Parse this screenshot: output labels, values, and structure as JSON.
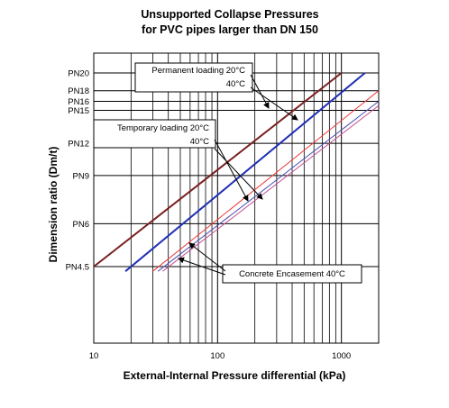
{
  "chart_data": {
    "type": "line",
    "title": "Unsupported Collapse Pressures",
    "subtitle": "for PVC pipes larger than DN 150",
    "xlabel": "External-Internal Pressure differential (kPa)",
    "ylabel": "Dimension ratio (Dm/t)",
    "x_scale": "log",
    "y_scale": "log",
    "xlim": [
      10,
      2000
    ],
    "x_ticks": [
      {
        "value": 10,
        "label": "10"
      },
      {
        "value": 100,
        "label": "100"
      },
      {
        "value": 1000,
        "label": "1000"
      }
    ],
    "y_ticks": [
      {
        "value": 80,
        "label": "PN20"
      },
      {
        "value": 64,
        "label": "PN18"
      },
      {
        "value": 56,
        "label": "PN16"
      },
      {
        "value": 50,
        "label": "PN15"
      },
      {
        "value": 33,
        "label": "PN12"
      },
      {
        "value": 22,
        "label": "PN9"
      },
      {
        "value": 12,
        "label": "PN6"
      },
      {
        "value": 7,
        "label": "PN4.5"
      }
    ],
    "grid": true,
    "series": [
      {
        "color": "#7a1f1f",
        "x": [
          10,
          1000
        ],
        "y": [
          7,
          80
        ]
      },
      {
        "color": "#1f2fb4",
        "x": [
          18,
          1550
        ],
        "y": [
          6.6,
          80
        ]
      },
      {
        "color": "#ee3b3b",
        "x": [
          30,
          2000
        ],
        "y": [
          6.6,
          64
        ]
      },
      {
        "color": "#4b4fb0",
        "x": [
          33,
          2000
        ],
        "y": [
          6.6,
          56
        ]
      },
      {
        "color": "#c05090",
        "x": [
          36,
          2000
        ],
        "y": [
          6.6,
          53
        ]
      }
    ],
    "annotations": [
      {
        "lines": [
          "Permanent loading 20°C",
          "40°C"
        ]
      },
      {
        "lines": [
          "Temporary loading 20°C",
          "40°C"
        ]
      },
      {
        "lines": [
          "Concrete Encasement 40°C"
        ]
      }
    ]
  }
}
